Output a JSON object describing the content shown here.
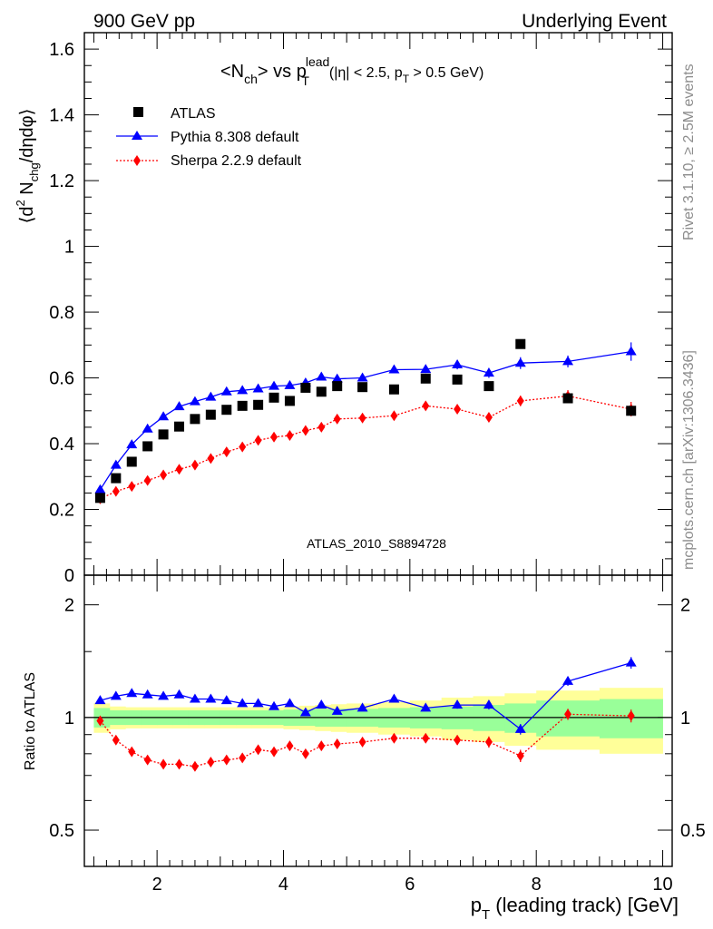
{
  "header": {
    "left": "900 GeV pp",
    "right": "Underlying Event"
  },
  "side_labels": {
    "rivet": "Rivet 3.1.10, ≥ 2.5M events",
    "mcplots": "mcplots.cern.ch [arXiv:1306.3436]"
  },
  "colors": {
    "atlas": "#000000",
    "pythia": "#0000ff",
    "sherpa": "#ff0000",
    "band_inner": "#99ff99",
    "band_outer": "#ffff99",
    "watermark": "#999999"
  },
  "chart_data": [
    {
      "type": "scatter",
      "title": {
        "main": "<N",
        "main_sub": "ch",
        "mid": "> vs p",
        "pt_sup": "lead",
        "pt_sub": "T",
        "cut": "(|η| < 2.5, p",
        "cut_sub": "T",
        "cut_end": " > 0.5 GeV)"
      },
      "ylabel": {
        "open": "⟨d",
        "sup2": "2",
        "n": " N",
        "n_sub": "chg",
        "close": "/dηdφ⟩"
      },
      "xlim": [
        0.85,
        10.15
      ],
      "ylim": [
        0,
        1.65
      ],
      "yticks": [
        0,
        0.2,
        0.4,
        0.6,
        0.8,
        1,
        1.2,
        1.4,
        1.6
      ],
      "ytick_labels": [
        "0",
        "0.2",
        "0.4",
        "0.6",
        "0.8",
        "1",
        "1.2",
        "1.4",
        "1.6"
      ],
      "legend": {
        "placement": "top-left",
        "entries": [
          "ATLAS",
          "Pythia 8.308 default",
          "Sherpa 2.2.9 default"
        ]
      },
      "watermark": "ATLAS_2010_S8894728",
      "x": [
        1.1,
        1.35,
        1.6,
        1.85,
        2.1,
        2.35,
        2.6,
        2.85,
        3.1,
        3.35,
        3.6,
        3.85,
        4.1,
        4.35,
        4.6,
        4.85,
        5.25,
        5.75,
        6.25,
        6.75,
        7.25,
        7.75,
        8.5,
        9.5
      ],
      "series": [
        {
          "name": "ATLAS",
          "marker": "square",
          "values": [
            0.235,
            0.295,
            0.345,
            0.392,
            0.428,
            0.452,
            0.475,
            0.488,
            0.503,
            0.515,
            0.518,
            0.54,
            0.53,
            0.57,
            0.558,
            0.575,
            0.572,
            0.565,
            0.598,
            0.595,
            0.575,
            0.703,
            0.538,
            0.5
          ]
        },
        {
          "name": "Pythia 8.308 default",
          "marker": "triangle",
          "values": [
            0.26,
            0.335,
            0.397,
            0.445,
            0.482,
            0.513,
            0.528,
            0.542,
            0.558,
            0.562,
            0.567,
            0.575,
            0.577,
            0.585,
            0.603,
            0.597,
            0.6,
            0.625,
            0.626,
            0.64,
            0.615,
            0.645,
            0.65,
            0.68
          ],
          "errors": [
            0.004,
            0.004,
            0.004,
            0.004,
            0.004,
            0.004,
            0.004,
            0.004,
            0.004,
            0.004,
            0.005,
            0.005,
            0.005,
            0.006,
            0.006,
            0.007,
            0.007,
            0.009,
            0.011,
            0.014,
            0.015,
            0.018,
            0.018,
            0.028
          ]
        },
        {
          "name": "Sherpa 2.2.9 default",
          "marker": "diamond",
          "line": "dotted",
          "values": [
            0.232,
            0.255,
            0.27,
            0.288,
            0.305,
            0.322,
            0.335,
            0.355,
            0.375,
            0.39,
            0.41,
            0.42,
            0.425,
            0.44,
            0.45,
            0.475,
            0.478,
            0.485,
            0.515,
            0.505,
            0.48,
            0.53,
            0.545,
            0.505
          ],
          "errors": [
            0.004,
            0.004,
            0.004,
            0.004,
            0.004,
            0.004,
            0.004,
            0.004,
            0.004,
            0.005,
            0.005,
            0.005,
            0.006,
            0.006,
            0.007,
            0.007,
            0.008,
            0.009,
            0.01,
            0.012,
            0.014,
            0.016,
            0.018,
            0.022
          ]
        }
      ]
    },
    {
      "type": "scatter",
      "ylabel": "Ratio to ATLAS",
      "y_scale": "log",
      "ylim": [
        0.4,
        2.4
      ],
      "yticks": [
        0.5,
        1,
        2
      ],
      "ytick_labels": [
        "0.5",
        "1",
        "2"
      ],
      "xlabel": {
        "p": "p",
        "p_sub": "T",
        "rest": " (leading track) [GeV]"
      },
      "xticks": [
        2,
        4,
        6,
        8,
        10
      ],
      "xtick_labels": [
        "2",
        "4",
        "6",
        "8",
        "10"
      ],
      "reference": 1,
      "bands": {
        "edges": [
          1.0,
          1.25,
          1.5,
          1.75,
          2.0,
          2.25,
          2.5,
          2.75,
          3.0,
          3.25,
          3.5,
          3.75,
          4.0,
          4.25,
          4.5,
          4.75,
          5.0,
          5.5,
          6.0,
          6.5,
          7.0,
          7.5,
          8.0,
          9.0,
          10.0
        ],
        "inner": [
          0.06,
          0.045,
          0.045,
          0.045,
          0.045,
          0.045,
          0.045,
          0.045,
          0.045,
          0.045,
          0.045,
          0.045,
          0.05,
          0.05,
          0.055,
          0.055,
          0.055,
          0.06,
          0.065,
          0.07,
          0.08,
          0.09,
          0.11,
          0.12
        ],
        "outer": [
          0.09,
          0.07,
          0.065,
          0.065,
          0.065,
          0.065,
          0.065,
          0.065,
          0.065,
          0.065,
          0.065,
          0.065,
          0.07,
          0.075,
          0.08,
          0.085,
          0.09,
          0.1,
          0.11,
          0.13,
          0.14,
          0.16,
          0.18,
          0.2
        ]
      },
      "x": [
        1.1,
        1.35,
        1.6,
        1.85,
        2.1,
        2.35,
        2.6,
        2.85,
        3.1,
        3.35,
        3.6,
        3.85,
        4.1,
        4.35,
        4.6,
        4.85,
        5.25,
        5.75,
        6.25,
        6.75,
        7.25,
        7.75,
        8.5,
        9.5
      ],
      "series": [
        {
          "name": "Pythia 8.308 default",
          "marker": "triangle",
          "values": [
            1.11,
            1.14,
            1.16,
            1.15,
            1.14,
            1.15,
            1.12,
            1.12,
            1.11,
            1.09,
            1.09,
            1.07,
            1.09,
            1.03,
            1.08,
            1.04,
            1.06,
            1.12,
            1.06,
            1.08,
            1.08,
            0.93,
            1.25,
            1.4
          ],
          "errors": [
            0.012,
            0.012,
            0.012,
            0.012,
            0.012,
            0.012,
            0.012,
            0.012,
            0.012,
            0.012,
            0.013,
            0.013,
            0.013,
            0.014,
            0.014,
            0.015,
            0.015,
            0.017,
            0.02,
            0.025,
            0.03,
            0.03,
            0.035,
            0.05
          ]
        },
        {
          "name": "Sherpa 2.2.9 default",
          "marker": "diamond",
          "line": "dotted",
          "values": [
            0.98,
            0.87,
            0.81,
            0.77,
            0.75,
            0.75,
            0.74,
            0.76,
            0.77,
            0.78,
            0.82,
            0.81,
            0.84,
            0.8,
            0.84,
            0.85,
            0.86,
            0.88,
            0.88,
            0.87,
            0.86,
            0.79,
            1.02,
            1.01
          ],
          "errors": [
            0.012,
            0.012,
            0.012,
            0.012,
            0.012,
            0.012,
            0.012,
            0.012,
            0.012,
            0.013,
            0.013,
            0.013,
            0.014,
            0.015,
            0.015,
            0.016,
            0.017,
            0.019,
            0.021,
            0.025,
            0.03,
            0.03,
            0.035,
            0.04
          ]
        }
      ]
    }
  ]
}
